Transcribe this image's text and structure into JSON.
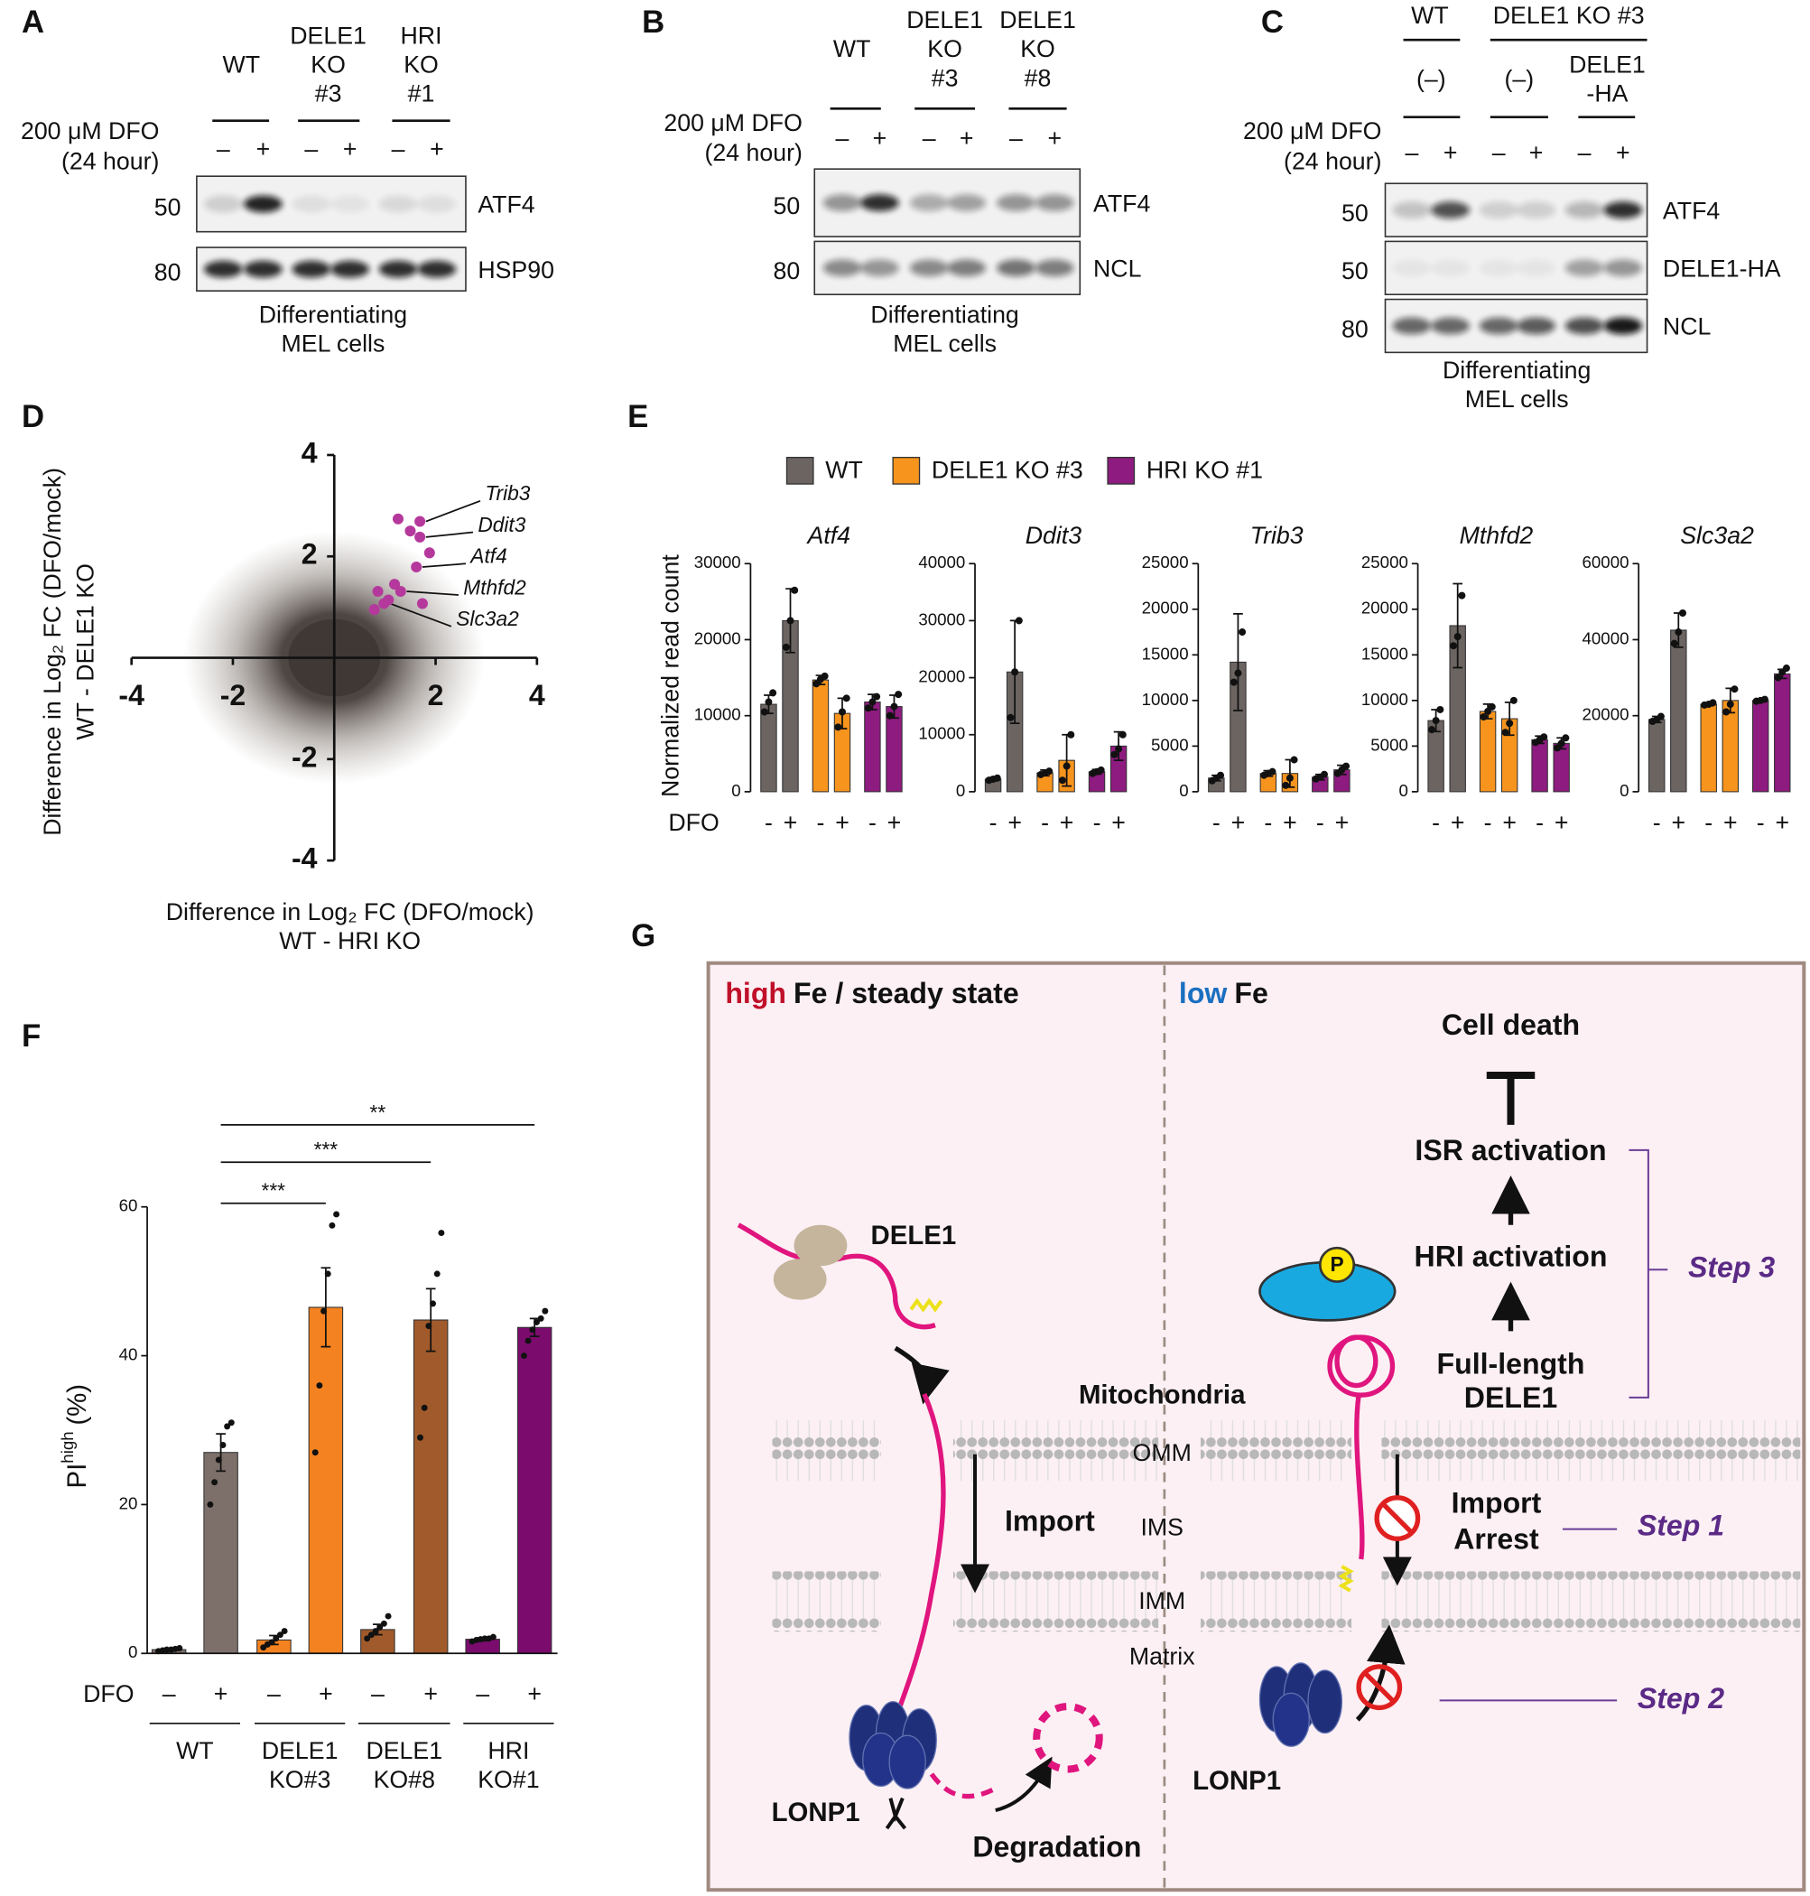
{
  "letters": [
    "A",
    "B",
    "C",
    "D",
    "E",
    "F",
    "G"
  ],
  "panels": {
    "A": {
      "headers": [
        [
          [
            "WT"
          ],
          [
            "DELE1",
            "KO",
            "#3"
          ],
          [
            "HRI",
            "KO",
            "#1"
          ]
        ]
      ],
      "treatment": [
        "200 μM DFO",
        "(24 hour)"
      ],
      "signs": [
        "–",
        "+",
        "–",
        "+",
        "–",
        "+"
      ],
      "blots": [
        {
          "marker": 50,
          "label": "ATF4"
        },
        {
          "marker": 80,
          "label": "HSP90"
        }
      ],
      "caption": [
        "Differentiating",
        "MEL cells"
      ]
    },
    "B": {
      "headers": [
        [
          [
            "WT"
          ],
          [
            "DELE1",
            "KO",
            "#3"
          ],
          [
            "DELE1",
            "KO",
            "#8"
          ]
        ]
      ],
      "treatment": [
        "200 μM DFO",
        "(24 hour)"
      ],
      "signs": [
        "–",
        "+",
        "–",
        "+",
        "–",
        "+"
      ],
      "blots": [
        {
          "marker": 50,
          "label": "ATF4"
        },
        {
          "marker": 80,
          "label": "NCL"
        }
      ],
      "caption": [
        "Differentiating",
        "MEL cells"
      ]
    },
    "C": {
      "headers": [
        [
          [
            "WT"
          ],
          [
            "DELE1 KO #3"
          ]
        ],
        [
          [
            "(–)"
          ],
          [
            "(–)"
          ],
          [
            "DELE1",
            "-HA"
          ]
        ]
      ],
      "treatment": [
        "200 μM DFO",
        "(24 hour)"
      ],
      "signs": [
        "–",
        "+",
        "–",
        "+",
        "–",
        "+"
      ],
      "blots": [
        {
          "marker": 50,
          "label": "ATF4"
        },
        {
          "marker": 50,
          "label": "DELE1-HA"
        },
        {
          "marker": 80,
          "label": "NCL"
        }
      ],
      "caption": [
        "Differentiating",
        "MEL cells"
      ]
    },
    "E": {
      "legend": [
        {
          "name": "WT",
          "color": "#6b6461"
        },
        {
          "name": "DELE1 KO #3",
          "color": "#f7941d"
        },
        {
          "name": "HRI KO #1",
          "color": "#8e1b80"
        }
      ]
    },
    "G": {
      "left_header": {
        "emph": "high",
        "rest": "Fe / steady state"
      },
      "right_header": {
        "emph": "low",
        "rest": "Fe"
      },
      "dele1": "DELE1",
      "mitochondria": "Mitochondria",
      "compartments": [
        "OMM",
        "IMS",
        "IMM",
        "Matrix"
      ],
      "import": "Import",
      "lonp1": [
        "LONP1",
        "LONP1"
      ],
      "degradation": "Degradation",
      "phospho": "P",
      "pathway": [
        "Cell death",
        "ISR activation",
        "HRI activation"
      ],
      "full_length": [
        "Full-length",
        "DELE1"
      ],
      "import_arrest": [
        "Import",
        "Arrest"
      ],
      "steps": [
        "Step 1",
        "Step 2",
        "Step 3"
      ]
    }
  },
  "chart_data": [
    {
      "type": "scatter",
      "xlabel": [
        "Difference in Log₂ FC (DFO/mock)",
        "WT - HRI KO"
      ],
      "ylabel": [
        "Difference in Log₂ FC (DFO/mock)",
        "WT - DELE1 KO"
      ],
      "xlim": [
        -4,
        4
      ],
      "ylim": [
        -4,
        4
      ],
      "xticks": [
        -4,
        -2,
        2,
        4
      ],
      "yticks": [
        4,
        2,
        -2,
        -4
      ],
      "cloud_color": "#3f3835",
      "series": [
        {
          "color": "#b5399c",
          "x": [
            1.69,
            1.69,
            1.62,
            1.31,
            0.98,
            1.26,
            1.5,
            1.88,
            1.19,
            0.86,
            1.74,
            0.79,
            1.07
          ],
          "y": [
            2.69,
            2.38,
            1.79,
            1.31,
            1.07,
            2.74,
            2.5,
            2.07,
            1.45,
            1.31,
            1.07,
            0.95,
            1.14
          ],
          "labels": [
            "Trib3",
            "Ddit3",
            "Atf4",
            "Mthfd2",
            "Slc3a2",
            null,
            null,
            null,
            null,
            null,
            null,
            null,
            null
          ]
        }
      ]
    },
    {
      "type": "bar",
      "title": "Atf4",
      "ylabel": "Normalized read count",
      "xlabel": "DFO",
      "categories": [
        "-",
        "+",
        "-",
        "+",
        "-",
        "+"
      ],
      "colors": [
        "#6b6461",
        "#6b6461",
        "#f7941d",
        "#f7941d",
        "#8e1b80",
        "#8e1b80"
      ],
      "values": [
        11500,
        22500,
        14700,
        10300,
        11800,
        11200
      ],
      "errors": [
        1200,
        4200,
        600,
        2000,
        1000,
        1500
      ],
      "points": [
        [
          10500,
          11800,
          13000
        ],
        [
          19000,
          22500,
          26500
        ],
        [
          14200,
          14800,
          15200
        ],
        [
          8500,
          10500,
          12300
        ],
        [
          11000,
          11800,
          12500
        ],
        [
          10000,
          11200,
          12800
        ]
      ],
      "ylim": [
        0,
        30000
      ],
      "yticks": [
        0,
        10000,
        20000,
        30000
      ]
    },
    {
      "type": "bar",
      "title": "Ddit3",
      "categories": [
        "-",
        "+",
        "-",
        "+",
        "-",
        "+"
      ],
      "colors": [
        "#6b6461",
        "#6b6461",
        "#f7941d",
        "#f7941d",
        "#8e1b80",
        "#8e1b80"
      ],
      "values": [
        2200,
        21000,
        3300,
        5500,
        3500,
        8000
      ],
      "errors": [
        300,
        9000,
        500,
        4500,
        400,
        2500
      ],
      "points": [
        [
          2000,
          2200,
          2400
        ],
        [
          13000,
          21000,
          30000
        ],
        [
          3000,
          3300,
          3600
        ],
        [
          2000,
          4500,
          10000
        ],
        [
          3200,
          3500,
          3800
        ],
        [
          6500,
          7500,
          10000
        ]
      ],
      "ylim": [
        0,
        40000
      ],
      "yticks": [
        0,
        10000,
        20000,
        30000,
        40000
      ]
    },
    {
      "type": "bar",
      "title": "Trib3",
      "categories": [
        "-",
        "+",
        "-",
        "+",
        "-",
        "+"
      ],
      "colors": [
        "#6b6461",
        "#6b6461",
        "#f7941d",
        "#f7941d",
        "#8e1b80",
        "#8e1b80"
      ],
      "values": [
        1500,
        14200,
        2000,
        2000,
        1600,
        2400
      ],
      "errors": [
        300,
        5300,
        300,
        1500,
        300,
        500
      ],
      "points": [
        [
          1200,
          1500,
          1800
        ],
        [
          12000,
          13000,
          17500
        ],
        [
          1800,
          2000,
          2200
        ],
        [
          700,
          1500,
          3500
        ],
        [
          1400,
          1600,
          1900
        ],
        [
          2000,
          2400,
          2800
        ]
      ],
      "ylim": [
        0,
        25000
      ],
      "yticks": [
        0,
        5000,
        10000,
        15000,
        20000,
        25000
      ]
    },
    {
      "type": "bar",
      "title": "Mthfd2",
      "categories": [
        "-",
        "+",
        "-",
        "+",
        "-",
        "+"
      ],
      "colors": [
        "#6b6461",
        "#6b6461",
        "#f7941d",
        "#f7941d",
        "#8e1b80",
        "#8e1b80"
      ],
      "values": [
        7800,
        18200,
        8800,
        8000,
        5700,
        5300
      ],
      "errors": [
        1200,
        4600,
        800,
        1800,
        400,
        600
      ],
      "points": [
        [
          6800,
          7800,
          9000
        ],
        [
          16000,
          17000,
          21500
        ],
        [
          8200,
          8800,
          9300
        ],
        [
          6500,
          7500,
          10000
        ],
        [
          5400,
          5700,
          6000
        ],
        [
          4800,
          5300,
          5900
        ]
      ],
      "ylim": [
        0,
        25000
      ],
      "yticks": [
        0,
        5000,
        10000,
        15000,
        20000,
        25000
      ]
    },
    {
      "type": "bar",
      "title": "Slc3a2",
      "categories": [
        "-",
        "+",
        "-",
        "+",
        "-",
        "+"
      ],
      "colors": [
        "#6b6461",
        "#6b6461",
        "#f7941d",
        "#f7941d",
        "#8e1b80",
        "#8e1b80"
      ],
      "values": [
        19000,
        42500,
        23000,
        24000,
        24000,
        31000
      ],
      "errors": [
        800,
        4500,
        400,
        3200,
        400,
        1200
      ],
      "points": [
        [
          18500,
          19000,
          19800
        ],
        [
          39000,
          42000,
          47000
        ],
        [
          22800,
          23000,
          23400
        ],
        [
          21000,
          23000,
          27000
        ],
        [
          23800,
          24000,
          24300
        ],
        [
          30000,
          31500,
          32500
        ]
      ],
      "ylim": [
        0,
        60000
      ],
      "yticks": [
        0,
        20000,
        40000,
        60000
      ]
    },
    {
      "type": "bar",
      "ylabel": {
        "main": "PI",
        "sup": "high",
        "unit": "(%)"
      },
      "xlabel": "DFO",
      "categories": [
        "–",
        "+",
        "–",
        "+",
        "–",
        "+",
        "–",
        "+"
      ],
      "groups": [
        [
          "WT"
        ],
        [
          "DELE1",
          "KO#3"
        ],
        [
          "DELE1",
          "KO#8"
        ],
        [
          "HRI",
          "KO#1"
        ]
      ],
      "colors": [
        "#7d706b",
        "#7d706b",
        "#f58220",
        "#f58220",
        "#a15a2b",
        "#a15a2b",
        "#7b0c6e",
        "#7b0c6e"
      ],
      "values": [
        0.5,
        27,
        1.8,
        46.5,
        3.2,
        44.8,
        1.9,
        43.8
      ],
      "errors": [
        0.2,
        2.5,
        0.6,
        5.3,
        0.7,
        4.2,
        0.2,
        1.2
      ],
      "points": [
        [
          0.3,
          0.4,
          0.5,
          0.5,
          0.6,
          0.7
        ],
        [
          20,
          23,
          26,
          28,
          30.5,
          31
        ],
        [
          0.8,
          1.2,
          1.5,
          2,
          2.5,
          3
        ],
        [
          27,
          36,
          46,
          51,
          57.5,
          59
        ],
        [
          2,
          2.5,
          3,
          3.5,
          4,
          5
        ],
        [
          29,
          33,
          44,
          47,
          51,
          56.5
        ],
        [
          1.6,
          1.8,
          1.9,
          2,
          2,
          2.2
        ],
        [
          40,
          42,
          43.5,
          44.5,
          45,
          46
        ]
      ],
      "ylim": [
        0,
        60
      ],
      "yticks": [
        0,
        20,
        40,
        60
      ],
      "comparisons": [
        {
          "label": "***",
          "pair": [
            1,
            3
          ]
        },
        {
          "label": "***",
          "pair": [
            1,
            5
          ]
        },
        {
          "label": "**",
          "pair": [
            1,
            7
          ]
        }
      ]
    }
  ]
}
